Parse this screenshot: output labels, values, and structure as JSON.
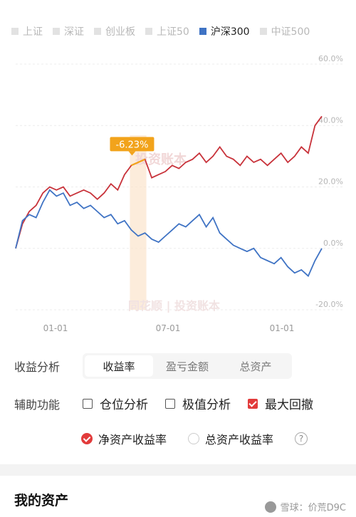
{
  "legend": [
    {
      "label": "上证",
      "active": false
    },
    {
      "label": "深证",
      "active": false
    },
    {
      "label": "创业板",
      "active": false
    },
    {
      "label": "上证50",
      "active": false
    },
    {
      "label": "沪深300",
      "active": true
    },
    {
      "label": "中证500",
      "active": false
    }
  ],
  "colors": {
    "portfolio": "#c8323a",
    "index": "#3f73c4",
    "drawdown_line": "#f2a31b",
    "drawdown_band": "#fbe4cc",
    "badge": "#f2a31b"
  },
  "chart_data": {
    "type": "line",
    "ylim": [
      -20,
      60
    ],
    "y_ticks": [
      "60.0%",
      "40.0%",
      "20.0%",
      "0.0%",
      "-20.0%"
    ],
    "x_ticks": [
      "01-01",
      "07-01",
      "01-01"
    ],
    "drawdown_label": "-6.23%",
    "watermark_top": "投资账本",
    "watermark_bottom": "同花顺 | 投资账本",
    "series": [
      {
        "name": "净资产收益率",
        "color": "#c8323a",
        "values": [
          0,
          8,
          12,
          14,
          18,
          20,
          19,
          20,
          17,
          18,
          19,
          18,
          16,
          18,
          21,
          19,
          24,
          27,
          28,
          29,
          23,
          24,
          25,
          27,
          26,
          28,
          29,
          31,
          28,
          30,
          33,
          30,
          29,
          27,
          30,
          28,
          29,
          27,
          29,
          31,
          28,
          30,
          33,
          31,
          40,
          43
        ]
      },
      {
        "name": "沪深300",
        "color": "#3f73c4",
        "values": [
          0,
          9,
          11,
          10,
          15,
          19,
          17,
          18,
          14,
          15,
          13,
          14,
          12,
          10,
          11,
          8,
          9,
          6,
          4,
          5,
          3,
          2,
          4,
          6,
          8,
          7,
          9,
          11,
          7,
          10,
          5,
          3,
          1,
          0,
          -1,
          0,
          -3,
          -4,
          -5,
          -3,
          -6,
          -8,
          -7,
          -9,
          -4,
          0
        ]
      }
    ],
    "drawdown_range": [
      17,
      19
    ]
  },
  "analysis": {
    "label": "收益分析",
    "tabs": [
      "收益率",
      "盈亏金额",
      "总资产"
    ],
    "active": 0
  },
  "aux": {
    "label": "辅助功能",
    "options": [
      {
        "label": "仓位分析",
        "checked": false
      },
      {
        "label": "极值分析",
        "checked": false
      },
      {
        "label": "最大回撤",
        "checked": true
      }
    ]
  },
  "rate": {
    "options": [
      {
        "label": "净资产收益率",
        "checked": true
      },
      {
        "label": "总资产收益率",
        "checked": false
      }
    ],
    "help": "?"
  },
  "assets": {
    "title": "我的资产"
  },
  "watermark": "雪球：价荒D9C"
}
